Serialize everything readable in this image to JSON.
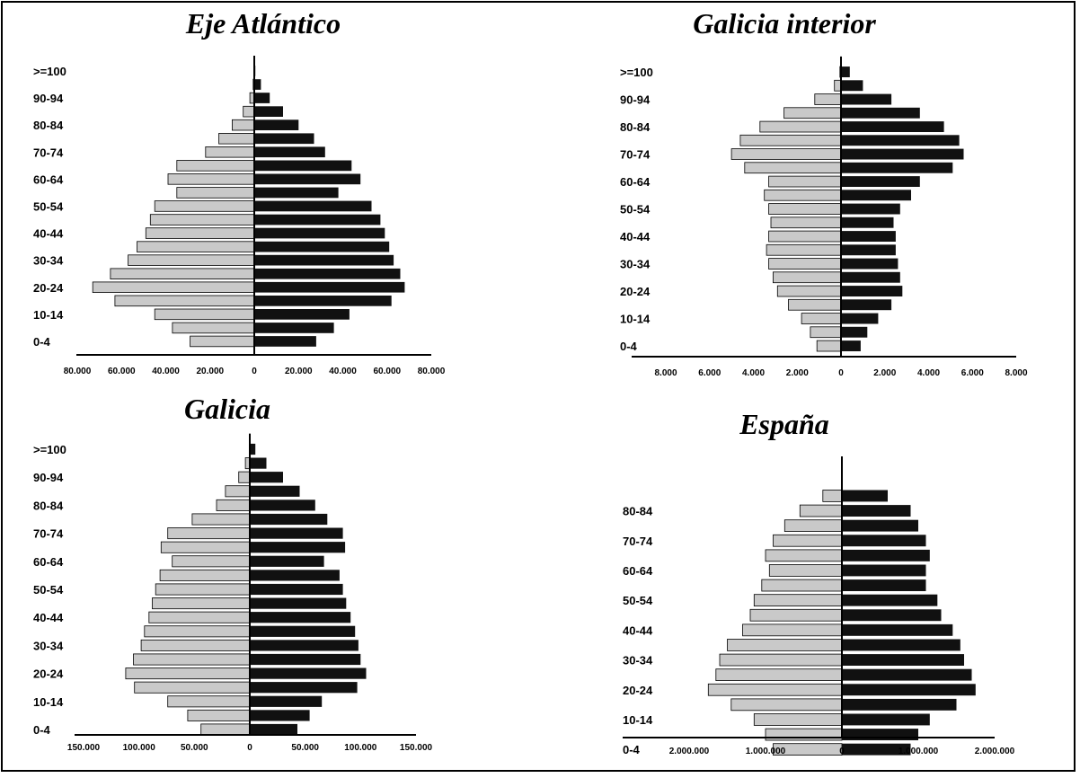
{
  "colors": {
    "male": "#c9c9c9",
    "female": "#111111",
    "axis": "#000000"
  },
  "chart_data": [
    {
      "type": "bar",
      "title": "Eje Atlántico",
      "categories": [
        "0-4",
        "5-9",
        "10-14",
        "15-19",
        "20-24",
        "25-29",
        "30-34",
        "35-39",
        "40-44",
        "45-49",
        "50-54",
        "55-59",
        "60-64",
        "65-69",
        "70-74",
        "75-79",
        "80-84",
        "85-89",
        "90-94",
        "95-99",
        ">=100"
      ],
      "category_labels": [
        "0-4",
        "",
        "10-14",
        "",
        "20-24",
        "",
        "30-34",
        "",
        "40-44",
        "",
        "50-54",
        "",
        "60-64",
        "",
        "70-74",
        "",
        "80-84",
        "",
        "90-94",
        "",
        ">=100"
      ],
      "series": [
        {
          "side": "left",
          "values": [
            29000,
            37000,
            45000,
            63000,
            73000,
            65000,
            57000,
            53000,
            49000,
            47000,
            45000,
            35000,
            39000,
            35000,
            22000,
            16000,
            10000,
            5000,
            2000,
            500,
            100
          ]
        },
        {
          "side": "right",
          "values": [
            28000,
            36000,
            43000,
            62000,
            68000,
            66000,
            63000,
            61000,
            59000,
            57000,
            53000,
            38000,
            48000,
            44000,
            32000,
            27000,
            20000,
            13000,
            7000,
            3000,
            500
          ]
        }
      ],
      "xlim": [
        -80000,
        80000
      ],
      "tick_values": [
        -80000,
        -60000,
        -40000,
        -20000,
        0,
        20000,
        40000,
        60000,
        80000
      ],
      "tick_labels": [
        "80.000",
        "60.000",
        "40.000",
        "20.000",
        "0",
        "20.000",
        "40.000",
        "60.000",
        "80.000"
      ]
    },
    {
      "type": "bar",
      "title": "Galicia interior",
      "categories": [
        "0-4",
        "5-9",
        "10-14",
        "15-19",
        "20-24",
        "25-29",
        "30-34",
        "35-39",
        "40-44",
        "45-49",
        "50-54",
        "55-59",
        "60-64",
        "65-69",
        "70-74",
        "75-79",
        "80-84",
        "85-89",
        "90-94",
        "95-99",
        ">=100"
      ],
      "category_labels": [
        "0-4",
        "",
        "10-14",
        "",
        "20-24",
        "",
        "30-34",
        "",
        "40-44",
        "",
        "50-54",
        "",
        "60-64",
        "",
        "70-74",
        "",
        "80-84",
        "",
        "90-94",
        "",
        ">=100"
      ],
      "series": [
        {
          "side": "left",
          "values": [
            1100,
            1400,
            1800,
            2400,
            2900,
            3100,
            3300,
            3400,
            3300,
            3200,
            3300,
            3500,
            3300,
            4400,
            5000,
            4600,
            3700,
            2600,
            1200,
            300,
            50
          ]
        },
        {
          "side": "right",
          "values": [
            900,
            1200,
            1700,
            2300,
            2800,
            2700,
            2600,
            2500,
            2500,
            2400,
            2700,
            3200,
            3600,
            5100,
            5600,
            5400,
            4700,
            3600,
            2300,
            1000,
            400
          ]
        }
      ],
      "xlim": [
        -8000,
        8000
      ],
      "tick_values": [
        -8000,
        -6000,
        -4000,
        -2000,
        0,
        2000,
        4000,
        6000,
        8000
      ],
      "tick_labels": [
        "8.000",
        "6.000",
        "4.000",
        "2.000",
        "0",
        "2.000",
        "4.000",
        "6.000",
        "8.000"
      ]
    },
    {
      "type": "bar",
      "title": "Galicia",
      "categories": [
        "0-4",
        "5-9",
        "10-14",
        "15-19",
        "20-24",
        "25-29",
        "30-34",
        "35-39",
        "40-44",
        "45-49",
        "50-54",
        "55-59",
        "60-64",
        "65-69",
        "70-74",
        "75-79",
        "80-84",
        "85-89",
        "90-94",
        "95-99",
        ">=100"
      ],
      "category_labels": [
        "0-4",
        "",
        "10-14",
        "",
        "20-24",
        "",
        "30-34",
        "",
        "40-44",
        "",
        "50-54",
        "",
        "60-64",
        "",
        "70-74",
        "",
        "80-84",
        "",
        "90-94",
        "",
        ">=100"
      ],
      "series": [
        {
          "side": "left",
          "values": [
            44000,
            56000,
            74000,
            104000,
            112000,
            105000,
            98000,
            95000,
            91000,
            88000,
            85000,
            81000,
            70000,
            80000,
            74000,
            52000,
            30000,
            22000,
            10000,
            4000,
            500
          ]
        },
        {
          "side": "right",
          "values": [
            43000,
            54000,
            65000,
            97000,
            105000,
            100000,
            98000,
            95000,
            91000,
            87000,
            84000,
            81000,
            67000,
            86000,
            84000,
            70000,
            59000,
            45000,
            30000,
            15000,
            5000
          ]
        }
      ],
      "xlim": [
        -150000,
        150000
      ],
      "tick_values": [
        -150000,
        -100000,
        -50000,
        0,
        50000,
        100000,
        150000
      ],
      "tick_labels": [
        "150.000",
        "100.000",
        "50.000",
        "0",
        "50.000",
        "100.000",
        "150.000"
      ]
    },
    {
      "type": "bar",
      "title": "España",
      "categories": [
        "0-4",
        "5-9",
        "10-14",
        "15-19",
        "20-24",
        "25-29",
        "30-34",
        "35-39",
        "40-44",
        "45-49",
        "50-54",
        "55-59",
        "60-64",
        "65-69",
        "70-74",
        "75-79",
        "80-84",
        "85-89"
      ],
      "category_labels": [
        "0-4",
        "",
        "10-14",
        "",
        "20-24",
        "",
        "30-34",
        "",
        "40-44",
        "",
        "50-54",
        "",
        "60-64",
        "",
        "70-74",
        "",
        "80-84",
        ""
      ],
      "series": [
        {
          "side": "left",
          "values": [
            900000,
            1000000,
            1150000,
            1450000,
            1750000,
            1650000,
            1600000,
            1500000,
            1300000,
            1200000,
            1150000,
            1050000,
            950000,
            1000000,
            900000,
            750000,
            550000,
            250000
          ]
        },
        {
          "side": "right",
          "values": [
            900000,
            1000000,
            1150000,
            1500000,
            1750000,
            1700000,
            1600000,
            1550000,
            1450000,
            1300000,
            1250000,
            1100000,
            1100000,
            1150000,
            1100000,
            1000000,
            900000,
            600000
          ]
        }
      ],
      "xlim": [
        -2000000,
        2000000
      ],
      "tick_values": [
        -2000000,
        -1000000,
        0,
        1000000,
        2000000
      ],
      "tick_labels": [
        "2.000.000",
        "1.000.000",
        "0",
        "1.000.000",
        "2.000.000"
      ]
    }
  ]
}
